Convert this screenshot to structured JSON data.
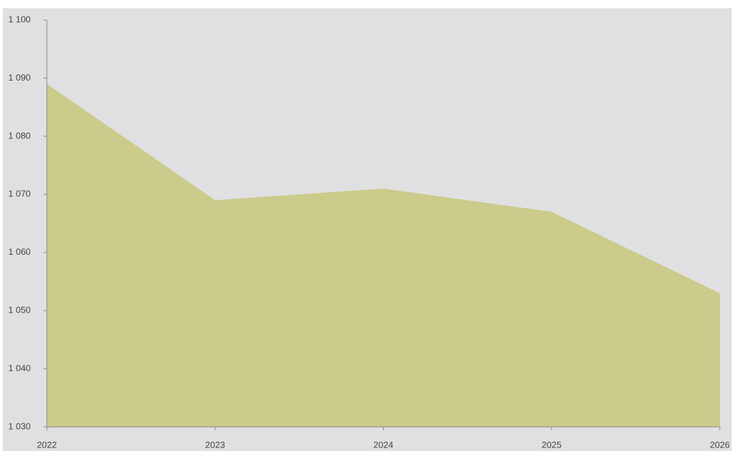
{
  "chart_data": {
    "type": "area",
    "x": [
      2022,
      2023,
      2024,
      2025,
      2026
    ],
    "values": [
      1089,
      1069,
      1071,
      1067,
      1053
    ],
    "color": "#cbcb8b",
    "xlim": [
      2022,
      2026
    ],
    "xticks": [
      2022,
      2023,
      2024,
      2025,
      2026
    ],
    "ylim": [
      1030,
      1100
    ],
    "yticks": [
      {
        "value": 1030,
        "label": "1 030"
      },
      {
        "value": 1040,
        "label": "1 040"
      },
      {
        "value": 1050,
        "label": "1 050"
      },
      {
        "value": 1060,
        "label": "1 060"
      },
      {
        "value": 1070,
        "label": "1 070"
      },
      {
        "value": 1080,
        "label": "1 080"
      },
      {
        "value": 1090,
        "label": "1 090"
      },
      {
        "value": 1100,
        "label": "1 100"
      }
    ],
    "grid": false
  }
}
